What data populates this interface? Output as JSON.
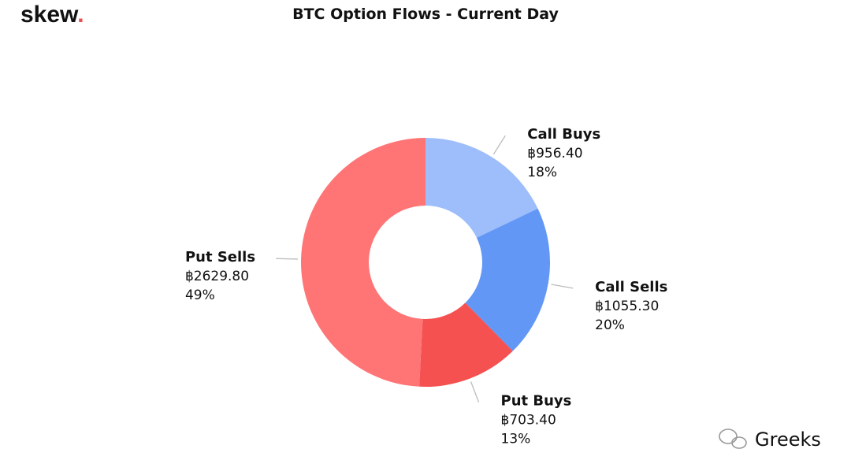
{
  "logo": "skew",
  "logo_dot": ".",
  "watermark": "Greeks",
  "chart_data": {
    "type": "donut",
    "title": "BTC Option Flows - Current Day",
    "categories": [
      "Call Buys",
      "Call Sells",
      "Put Buys",
      "Put Sells"
    ],
    "values": [
      956.4,
      1055.3,
      703.4,
      2629.8
    ],
    "value_labels": [
      "฿956.40",
      "฿1055.30",
      "฿703.40",
      "฿2629.80"
    ],
    "percent_labels": [
      "18%",
      "20%",
      "13%",
      "49%"
    ],
    "colors": [
      "#9dbdfb",
      "#6297f5",
      "#f55151",
      "#ff7575"
    ]
  }
}
